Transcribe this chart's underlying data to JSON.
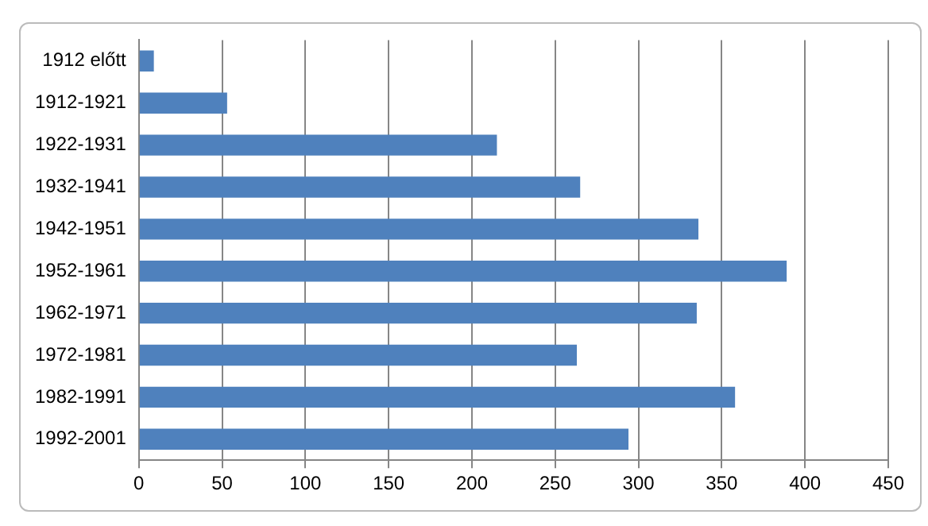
{
  "chart_data": {
    "type": "bar",
    "orientation": "horizontal",
    "categories": [
      "1912 előtt",
      "1912-1921",
      "1922-1931",
      "1932-1941",
      "1942-1951",
      "1952-1961",
      "1962-1971",
      "1972-1981",
      "1982-1991",
      "1992-2001"
    ],
    "values": [
      9,
      53,
      215,
      265,
      336,
      389,
      335,
      263,
      358,
      294
    ],
    "color": "#4f81bd",
    "xlim": [
      0,
      450
    ],
    "xticks": [
      0,
      50,
      100,
      150,
      200,
      250,
      300,
      350,
      400,
      450
    ],
    "grid": "x",
    "legend": false
  }
}
